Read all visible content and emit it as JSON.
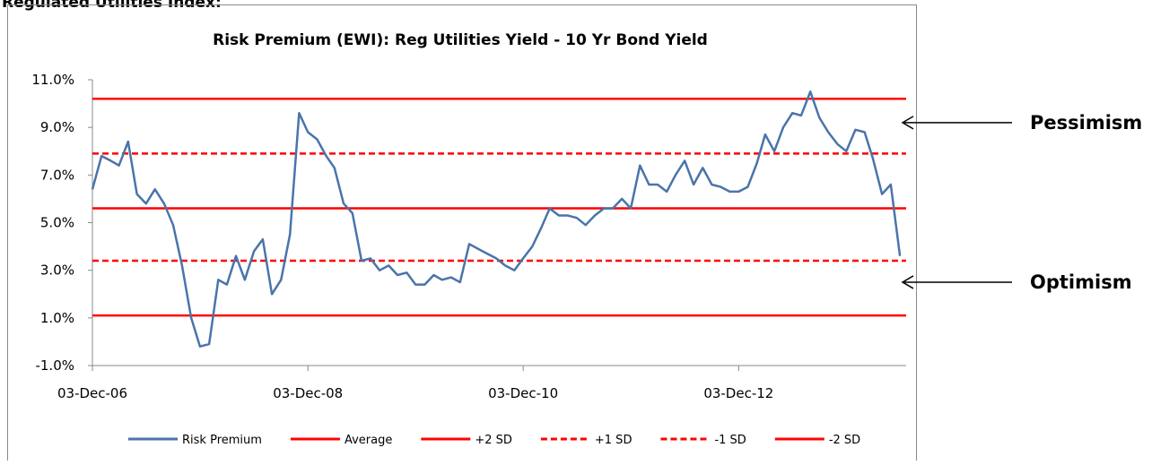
{
  "header": "Regulated Utilities Index:",
  "chart_data": {
    "type": "line",
    "title": "Risk Premium (EWI): Reg Utilities Yield - 10 Yr Bond Yield",
    "x": [
      "2006-12-03",
      "2007-01-03",
      "2007-02-03",
      "2007-03-03",
      "2007-04-03",
      "2007-05-03",
      "2007-06-03",
      "2007-07-03",
      "2007-08-03",
      "2007-09-03",
      "2007-10-03",
      "2007-11-03",
      "2007-12-03",
      "2008-01-03",
      "2008-02-03",
      "2008-03-03",
      "2008-04-03",
      "2008-05-03",
      "2008-06-03",
      "2008-07-03",
      "2008-08-03",
      "2008-09-03",
      "2008-10-03",
      "2008-11-03",
      "2008-12-03",
      "2009-01-03",
      "2009-02-03",
      "2009-03-03",
      "2009-04-03",
      "2009-05-03",
      "2009-06-03",
      "2009-07-03",
      "2009-08-03",
      "2009-09-03",
      "2009-10-03",
      "2009-11-03",
      "2009-12-03",
      "2010-01-03",
      "2010-02-03",
      "2010-03-03",
      "2010-04-03",
      "2010-05-03",
      "2010-06-03",
      "2010-07-03",
      "2010-08-03",
      "2010-09-03",
      "2010-10-03",
      "2010-11-03",
      "2010-12-03",
      "2011-01-03",
      "2011-02-03",
      "2011-03-03",
      "2011-04-03",
      "2011-05-03",
      "2011-06-03",
      "2011-07-03",
      "2011-08-03",
      "2011-09-03",
      "2011-10-03",
      "2011-11-03",
      "2011-12-03",
      "2012-01-03",
      "2012-02-03",
      "2012-03-03",
      "2012-04-03",
      "2012-05-03",
      "2012-06-03",
      "2012-07-03",
      "2012-08-03",
      "2012-09-03",
      "2012-10-03",
      "2012-11-03",
      "2012-12-03",
      "2013-01-03",
      "2013-02-03",
      "2013-03-03",
      "2013-04-03",
      "2013-05-03",
      "2013-06-03",
      "2013-07-03",
      "2013-08-03",
      "2013-09-03",
      "2013-10-03",
      "2013-11-03",
      "2013-12-03",
      "2014-01-03",
      "2014-02-03",
      "2014-03-03",
      "2014-04-03",
      "2014-05-03",
      "2014-06-03"
    ],
    "series": [
      {
        "name": "Risk Premium",
        "color": "#4a74aa",
        "values": [
          6.4,
          7.8,
          7.6,
          7.4,
          8.4,
          6.2,
          5.8,
          6.4,
          5.8,
          4.9,
          3.2,
          1.0,
          -0.2,
          -0.1,
          2.6,
          2.4,
          3.6,
          2.6,
          3.8,
          4.3,
          2.0,
          2.6,
          4.5,
          9.6,
          8.8,
          8.5,
          7.8,
          7.3,
          5.8,
          5.4,
          3.4,
          3.5,
          3.0,
          3.2,
          2.8,
          2.9,
          2.4,
          2.4,
          2.8,
          2.6,
          2.7,
          2.5,
          4.1,
          3.9,
          3.7,
          3.5,
          3.2,
          3.0,
          3.5,
          4.0,
          4.8,
          5.6,
          5.3,
          5.3,
          5.2,
          4.9,
          5.3,
          5.6,
          5.6,
          6.0,
          5.6,
          7.4,
          6.6,
          6.6,
          6.3,
          7.0,
          7.6,
          6.6,
          7.3,
          6.6,
          6.5,
          6.3,
          6.3,
          6.5,
          7.5,
          8.7,
          8.0,
          9.0,
          9.6,
          9.5,
          10.5,
          9.4,
          8.8,
          8.3,
          8.0,
          8.9,
          8.8,
          7.7,
          6.2,
          6.6,
          3.6
        ]
      }
    ],
    "reference_lines": [
      {
        "name": "Average",
        "value": 5.6,
        "color": "#ff0000",
        "dashed": false
      },
      {
        "name": "+2 SD",
        "value": 10.2,
        "color": "#ff0000",
        "dashed": false
      },
      {
        "name": "+1 SD",
        "value": 7.9,
        "color": "#ff0000",
        "dashed": true
      },
      {
        "name": "-1 SD",
        "value": 3.4,
        "color": "#ff0000",
        "dashed": true
      },
      {
        "name": "-2 SD",
        "value": 1.1,
        "color": "#ff0000",
        "dashed": false
      }
    ],
    "xlim": [
      "2006-12-03",
      "2014-06-24"
    ],
    "xticks": [
      {
        "value": "2006-12-03",
        "label": "03-Dec-06"
      },
      {
        "value": "2008-12-03",
        "label": "03-Dec-08"
      },
      {
        "value": "2010-12-03",
        "label": "03-Dec-10"
      },
      {
        "value": "2012-12-03",
        "label": "03-Dec-12"
      }
    ],
    "ylim": [
      -1,
      11
    ],
    "yticks": [
      {
        "value": -1,
        "label": "-1.0%"
      },
      {
        "value": 1,
        "label": "1.0%"
      },
      {
        "value": 3,
        "label": "3.0%"
      },
      {
        "value": 5,
        "label": "5.0%"
      },
      {
        "value": 7,
        "label": "7.0%"
      },
      {
        "value": 9,
        "label": "9.0%"
      },
      {
        "value": 11,
        "label": "11.0%"
      }
    ],
    "annotations": [
      {
        "text": "Pessimism",
        "value": 9.2
      },
      {
        "text": "Optimism",
        "value": 2.5
      }
    ],
    "legend": "bottom"
  }
}
